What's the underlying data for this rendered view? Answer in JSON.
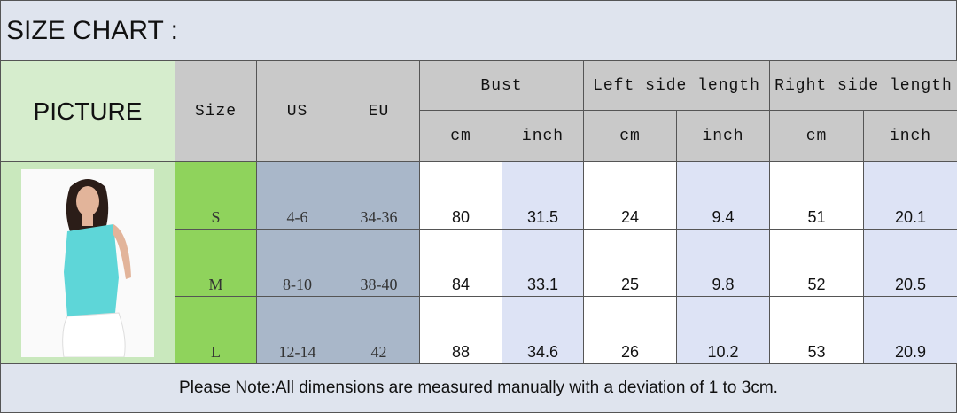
{
  "title": "SIZE CHART :",
  "table": {
    "headers": {
      "picture": "PICTURE",
      "size": "Size",
      "us": "US",
      "eu": "EU",
      "groups": [
        "Bust",
        "Left side length",
        "Right side length"
      ],
      "units": [
        "cm",
        "inch",
        "cm",
        "inch",
        "cm",
        "inch"
      ]
    },
    "rows": [
      [
        "S",
        "4-6",
        "34-36",
        80,
        31.5,
        24,
        9.4,
        51,
        20.1
      ],
      [
        "M",
        "8-10",
        "38-40",
        84,
        33.1,
        25,
        9.8,
        52,
        20.5
      ],
      [
        "L",
        "12-14",
        "42",
        88,
        34.6,
        26,
        10.2,
        53,
        20.9
      ]
    ]
  },
  "note": "Please Note:All dimensions are measured manually with a deviation of 1 to 3cm."
}
